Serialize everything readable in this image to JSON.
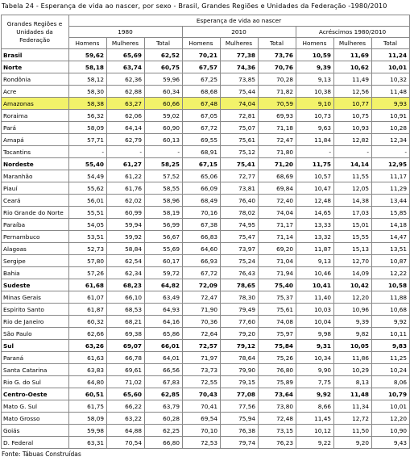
{
  "title": "Tabela 24 - Esperança de vida ao nascer, por sexo - Brasil, Grandes Regiões e Unidades da Federação -1980/2010",
  "table": {
    "corner": "Grandes Regiões e Unidades da Federação",
    "group": "Esperança de vida ao nascer",
    "periods": [
      "1980",
      "2010",
      "Acréscimos 1980/2010"
    ],
    "subheaders": [
      "Homens",
      "Mulheres",
      "Total",
      "Homens",
      "Mulheres",
      "Total",
      "Homens",
      "Mulheres",
      "Total"
    ],
    "rows": [
      {
        "name": "Brasil",
        "bold": true,
        "values": [
          "59,62",
          "65,69",
          "62,52",
          "70,21",
          "77,38",
          "73,76",
          "10,59",
          "11,69",
          "11,24"
        ]
      },
      {
        "name": "Norte",
        "bold": true,
        "values": [
          "58,18",
          "63,74",
          "60,75",
          "67,57",
          "74,36",
          "70,76",
          "9,39",
          "10,62",
          "10,01"
        ]
      },
      {
        "name": "Rondônia",
        "values": [
          "58,12",
          "62,36",
          "59,96",
          "67,25",
          "73,85",
          "70,28",
          "9,13",
          "11,49",
          "10,32"
        ]
      },
      {
        "name": "Acre",
        "values": [
          "58,30",
          "62,88",
          "60,34",
          "68,68",
          "75,44",
          "71,82",
          "10,38",
          "12,56",
          "11,48"
        ]
      },
      {
        "name": "Amazonas",
        "highlight": true,
        "values": [
          "58,38",
          "63,27",
          "60,66",
          "67,48",
          "74,04",
          "70,59",
          "9,10",
          "10,77",
          "9,93"
        ]
      },
      {
        "name": "Roraima",
        "values": [
          "56,32",
          "62,06",
          "59,02",
          "67,05",
          "72,81",
          "69,93",
          "10,73",
          "10,75",
          "10,91"
        ]
      },
      {
        "name": "Pará",
        "values": [
          "58,09",
          "64,14",
          "60,90",
          "67,72",
          "75,07",
          "71,18",
          "9,63",
          "10,93",
          "10,28"
        ]
      },
      {
        "name": "Amapá",
        "values": [
          "57,71",
          "62,79",
          "60,13",
          "69,55",
          "75,61",
          "72,47",
          "11,84",
          "12,82",
          "12,34"
        ]
      },
      {
        "name": "Tocantins",
        "values": [
          "-",
          "-",
          "-",
          "68,91",
          "75,12",
          "71,80",
          "-",
          "-",
          "-"
        ]
      },
      {
        "name": "Nordeste",
        "bold": true,
        "values": [
          "55,40",
          "61,27",
          "58,25",
          "67,15",
          "75,41",
          "71,20",
          "11,75",
          "14,14",
          "12,95"
        ]
      },
      {
        "name": "Maranhão",
        "values": [
          "54,49",
          "61,22",
          "57,52",
          "65,06",
          "72,77",
          "68,69",
          "10,57",
          "11,55",
          "11,17"
        ]
      },
      {
        "name": "Piauí",
        "values": [
          "55,62",
          "61,76",
          "58,55",
          "66,09",
          "73,81",
          "69,84",
          "10,47",
          "12,05",
          "11,29"
        ]
      },
      {
        "name": "Ceará",
        "values": [
          "56,01",
          "62,02",
          "58,96",
          "68,49",
          "76,40",
          "72,40",
          "12,48",
          "14,38",
          "13,44"
        ]
      },
      {
        "name": "Rio Grande do Norte",
        "values": [
          "55,51",
          "60,99",
          "58,19",
          "70,16",
          "78,02",
          "74,04",
          "14,65",
          "17,03",
          "15,85"
        ]
      },
      {
        "name": "Paraíba",
        "values": [
          "54,05",
          "59,94",
          "56,99",
          "67,38",
          "74,95",
          "71,17",
          "13,33",
          "15,01",
          "14,18"
        ]
      },
      {
        "name": "Pernambuco",
        "values": [
          "53,51",
          "59,92",
          "56,67",
          "66,83",
          "75,47",
          "71,14",
          "13,32",
          "15,55",
          "14,47"
        ]
      },
      {
        "name": "Alagoas",
        "values": [
          "52,73",
          "58,84",
          "55,69",
          "64,60",
          "73,97",
          "69,20",
          "11,87",
          "15,13",
          "13,51"
        ]
      },
      {
        "name": "Sergipe",
        "values": [
          "57,80",
          "62,54",
          "60,17",
          "66,93",
          "75,24",
          "71,04",
          "9,13",
          "12,70",
          "10,87"
        ]
      },
      {
        "name": "Bahia",
        "values": [
          "57,26",
          "62,34",
          "59,72",
          "67,72",
          "76,43",
          "71,94",
          "10,46",
          "14,09",
          "12,22"
        ]
      },
      {
        "name": "Sudeste",
        "bold": true,
        "values": [
          "61,68",
          "68,23",
          "64,82",
          "72,09",
          "78,65",
          "75,40",
          "10,41",
          "10,42",
          "10,58"
        ]
      },
      {
        "name": "Minas Gerais",
        "values": [
          "61,07",
          "66,10",
          "63,49",
          "72,47",
          "78,30",
          "75,37",
          "11,40",
          "12,20",
          "11,88"
        ]
      },
      {
        "name": "Espírito Santo",
        "values": [
          "61,87",
          "68,53",
          "64,93",
          "71,90",
          "79,49",
          "75,61",
          "10,03",
          "10,96",
          "10,68"
        ]
      },
      {
        "name": "Rio de Janeiro",
        "values": [
          "60,32",
          "68,21",
          "64,16",
          "70,36",
          "77,60",
          "74,08",
          "10,04",
          "9,39",
          "9,92"
        ]
      },
      {
        "name": "São Paulo",
        "values": [
          "62,66",
          "69,38",
          "65,86",
          "72,64",
          "79,20",
          "75,97",
          "9,98",
          "9,82",
          "10,11"
        ]
      },
      {
        "name": "Sul",
        "bold": true,
        "values": [
          "63,26",
          "69,07",
          "66,01",
          "72,57",
          "79,12",
          "75,84",
          "9,31",
          "10,05",
          "9,83"
        ]
      },
      {
        "name": "Paraná",
        "values": [
          "61,63",
          "66,78",
          "64,01",
          "71,97",
          "78,64",
          "75,26",
          "10,34",
          "11,86",
          "11,25"
        ]
      },
      {
        "name": "Santa Catarina",
        "values": [
          "63,83",
          "69,61",
          "66,56",
          "73,73",
          "79,90",
          "76,80",
          "9,90",
          "10,29",
          "10,24"
        ]
      },
      {
        "name": "Rio G. do Sul",
        "values": [
          "64,80",
          "71,02",
          "67,83",
          "72,55",
          "79,15",
          "75,89",
          "7,75",
          "8,13",
          "8,06"
        ]
      },
      {
        "name": "Centro-Oeste",
        "bold": true,
        "values": [
          "60,51",
          "65,60",
          "62,85",
          "70,43",
          "77,08",
          "73,64",
          "9,92",
          "11,48",
          "10,79"
        ]
      },
      {
        "name": "Mato G. Sul",
        "values": [
          "61,75",
          "66,22",
          "63,79",
          "70,41",
          "77,56",
          "73,80",
          "8,66",
          "11,34",
          "10,01"
        ]
      },
      {
        "name": "Mato Grosso",
        "values": [
          "58,09",
          "63,22",
          "60,28",
          "69,54",
          "75,94",
          "72,48",
          "11,45",
          "12,72",
          "12,20"
        ]
      },
      {
        "name": "Goiás",
        "values": [
          "59,98",
          "64,88",
          "62,25",
          "70,10",
          "76,38",
          "73,15",
          "10,12",
          "11,50",
          "10,90"
        ]
      },
      {
        "name": "D. Federal",
        "values": [
          "63,31",
          "70,54",
          "66,80",
          "72,53",
          "79,74",
          "76,23",
          "9,22",
          "9,20",
          "9,43"
        ]
      }
    ]
  },
  "footer": "Fonte: Tábuas Construídas"
}
